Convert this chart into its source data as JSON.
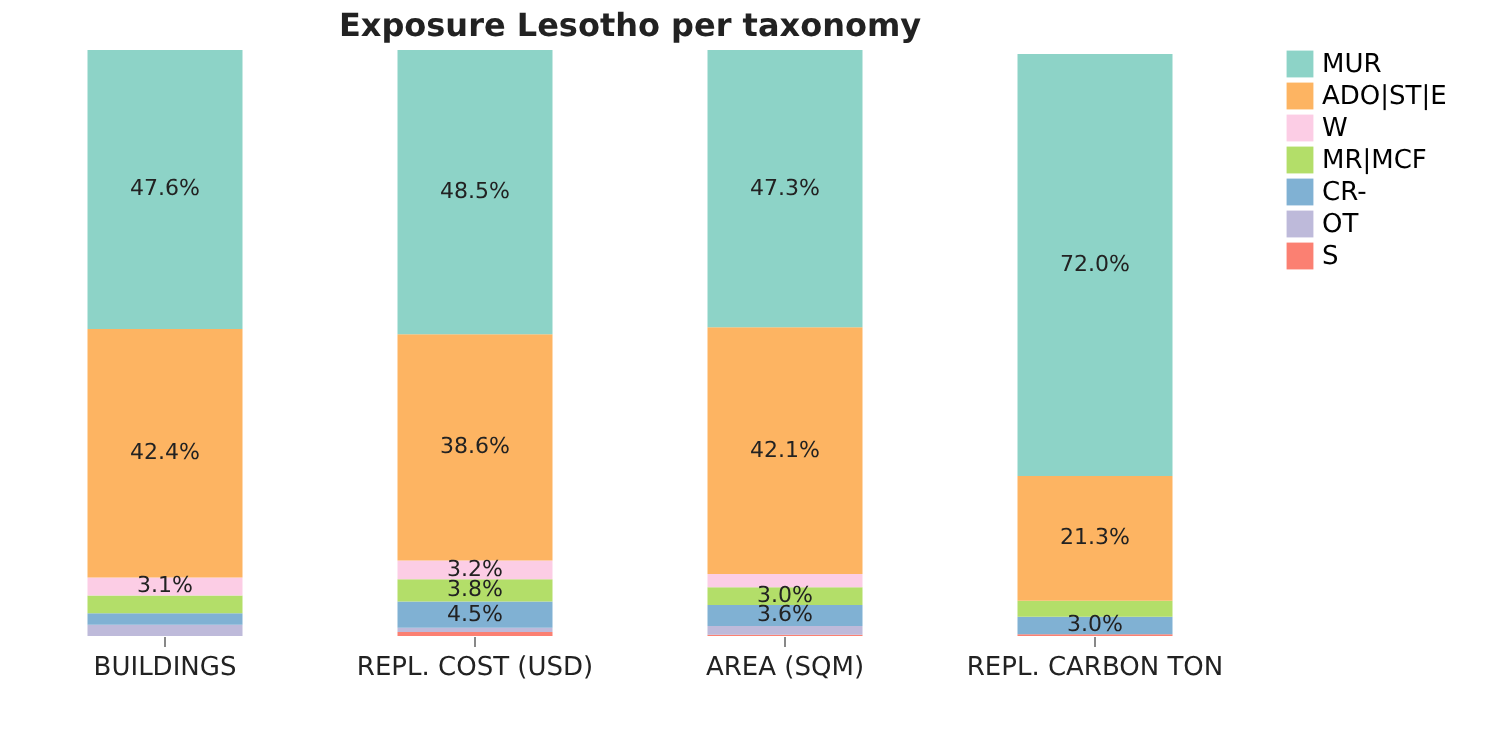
{
  "chart_data": {
    "type": "bar",
    "title": "Exposure Lesotho per taxonomy",
    "categories": [
      "BUILDINGS",
      "REPL. COST (USD)",
      "AREA (SQM)",
      "REPL. CARBON TON"
    ],
    "stacked": true,
    "legend": "top right",
    "series": [
      {
        "name": "S",
        "color": "#fb8072",
        "values": [
          0,
          0.7,
          0.2,
          0.3
        ],
        "value_labels": [
          null,
          null,
          null,
          null
        ]
      },
      {
        "name": "OT",
        "color": "#bebada",
        "values": [
          1.9,
          0.7,
          1.5,
          null
        ],
        "value_labels": [
          null,
          null,
          null,
          null
        ]
      },
      {
        "name": "CR-",
        "color": "#80b1d3",
        "values": [
          2.0,
          4.5,
          3.6,
          3.0
        ],
        "value_labels": [
          null,
          "4.5%",
          "3.6%",
          "3.0%"
        ]
      },
      {
        "name": "MR|MCF",
        "color": "#b3de69",
        "values": [
          3.0,
          3.8,
          3.0,
          2.7
        ],
        "value_labels": [
          null,
          "3.8%",
          "3.0%",
          null
        ]
      },
      {
        "name": "W",
        "color": "#fccde5",
        "values": [
          3.1,
          3.2,
          2.3,
          null
        ],
        "value_labels": [
          "3.1%",
          "3.2%",
          null,
          null
        ]
      },
      {
        "name": "ADO|ST|E",
        "color": "#fdb462",
        "values": [
          42.4,
          38.6,
          42.1,
          21.3
        ],
        "value_labels": [
          "42.4%",
          "38.6%",
          "42.1%",
          "21.3%"
        ]
      },
      {
        "name": "MUR",
        "color": "#8dd3c7",
        "values": [
          47.6,
          48.5,
          47.3,
          72.0
        ],
        "value_labels": [
          "47.6%",
          "48.5%",
          "47.3%",
          "72.0%"
        ]
      }
    ]
  }
}
